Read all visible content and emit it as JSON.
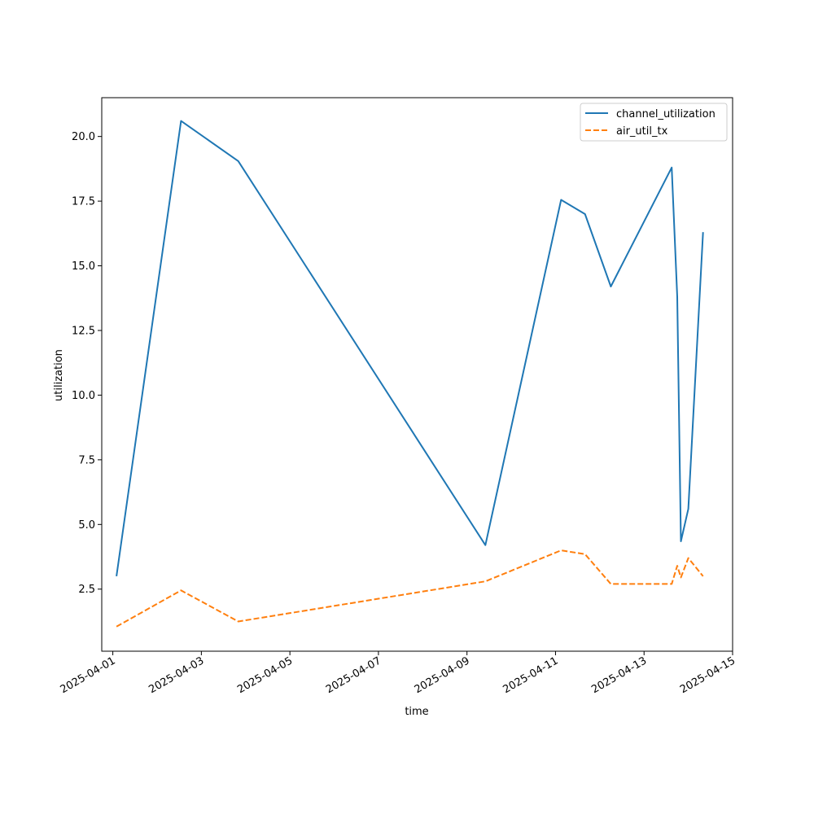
{
  "chart_data": {
    "type": "line",
    "xlabel": "time",
    "ylabel": "utilization",
    "x_axis_type": "date",
    "xlim": [
      "2025-03-31T18:00",
      "2025-04-15T00:00"
    ],
    "ylim": [
      0.1,
      21.5
    ],
    "x_ticks": [
      "2025-04-01",
      "2025-04-03",
      "2025-04-05",
      "2025-04-07",
      "2025-04-09",
      "2025-04-11",
      "2025-04-13",
      "2025-04-15"
    ],
    "y_ticks": [
      "2.5",
      "5.0",
      "7.5",
      "10.0",
      "12.5",
      "15.0",
      "17.5",
      "20.0"
    ],
    "grid": false,
    "legend_position": "top-right",
    "series": [
      {
        "name": "channel_utilization",
        "color": "#1f77b4",
        "style": "solid",
        "x": [
          "2025-04-01T02:00",
          "2025-04-02T13:00",
          "2025-04-03T20:00",
          "2025-04-09T10:00",
          "2025-04-11T03:00",
          "2025-04-11T16:00",
          "2025-04-12T06:00",
          "2025-04-13T15:00",
          "2025-04-13T18:00",
          "2025-04-13T20:00",
          "2025-04-14T00:00",
          "2025-04-14T08:00"
        ],
        "y": [
          3.0,
          20.6,
          19.05,
          4.2,
          17.55,
          17.0,
          14.2,
          18.8,
          13.8,
          4.35,
          5.6,
          16.3
        ]
      },
      {
        "name": "air_util_tx",
        "color": "#ff7f0e",
        "style": "dashed",
        "x": [
          "2025-04-01T02:00",
          "2025-04-02T13:00",
          "2025-04-03T20:00",
          "2025-04-09T10:00",
          "2025-04-11T03:00",
          "2025-04-11T16:00",
          "2025-04-12T06:00",
          "2025-04-13T15:00",
          "2025-04-13T18:00",
          "2025-04-13T20:00",
          "2025-04-14T00:00",
          "2025-04-14T08:00"
        ],
        "y": [
          1.05,
          2.45,
          1.25,
          2.8,
          4.0,
          3.85,
          2.7,
          2.7,
          3.4,
          2.95,
          3.7,
          3.0
        ]
      }
    ]
  }
}
